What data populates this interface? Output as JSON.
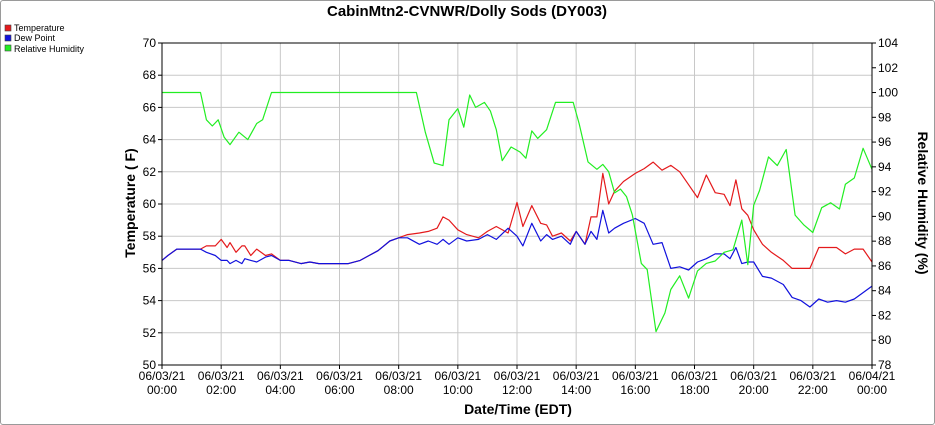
{
  "chart_data": {
    "type": "line",
    "title": "CabinMtn2-CVNWR/Dolly Sods (DY003)",
    "xlabel": "Date/Time (EDT)",
    "ylabel": "Temperature ( F)",
    "y2label": "Relative Humidity (%)",
    "xlim": [
      0,
      24
    ],
    "ylim": [
      50,
      70
    ],
    "y2lim": [
      78,
      104
    ],
    "grid": true,
    "legend_position": "top-left",
    "x_ticks": [
      0,
      2,
      4,
      6,
      8,
      10,
      12,
      14,
      16,
      18,
      20,
      22,
      24
    ],
    "x_tick_labels": [
      [
        "06/03/21",
        "00:00"
      ],
      [
        "06/03/21",
        "02:00"
      ],
      [
        "06/03/21",
        "04:00"
      ],
      [
        "06/03/21",
        "06:00"
      ],
      [
        "06/03/21",
        "08:00"
      ],
      [
        "06/03/21",
        "10:00"
      ],
      [
        "06/03/21",
        "12:00"
      ],
      [
        "06/03/21",
        "14:00"
      ],
      [
        "06/03/21",
        "16:00"
      ],
      [
        "06/03/21",
        "18:00"
      ],
      [
        "06/03/21",
        "20:00"
      ],
      [
        "06/03/21",
        "22:00"
      ],
      [
        "06/04/21",
        "00:00"
      ]
    ],
    "y_ticks": [
      50,
      52,
      54,
      56,
      58,
      60,
      62,
      64,
      66,
      68,
      70
    ],
    "y2_ticks": [
      78,
      80,
      82,
      84,
      86,
      88,
      90,
      92,
      94,
      96,
      98,
      100,
      102,
      104
    ],
    "series": [
      {
        "name": "Temperature",
        "color": "#e41a1c",
        "axis": "left",
        "x": [
          0,
          0.2,
          0.5,
          0.7,
          1,
          1.3,
          1.5,
          1.8,
          2,
          2.2,
          2.3,
          2.5,
          2.7,
          2.8,
          3,
          3.2,
          3.5,
          3.7,
          4,
          4.3,
          4.7,
          5,
          5.3,
          5.7,
          6,
          6.3,
          6.7,
          7,
          7.3,
          7.7,
          8,
          8.3,
          8.7,
          9,
          9.3,
          9.5,
          9.7,
          10,
          10.3,
          10.7,
          11,
          11.3,
          11.7,
          12,
          12.2,
          12.5,
          12.8,
          13,
          13.2,
          13.5,
          13.8,
          14,
          14.3,
          14.5,
          14.7,
          14.9,
          15.1,
          15.3,
          15.6,
          16,
          16.3,
          16.6,
          16.9,
          17.2,
          17.5,
          17.8,
          18.1,
          18.4,
          18.7,
          19,
          19.2,
          19.4,
          19.6,
          19.8,
          20,
          20.3,
          20.6,
          21,
          21.3,
          21.6,
          21.9,
          22.2,
          22.5,
          22.8,
          23.1,
          23.4,
          23.7,
          24
        ],
        "values": [
          56.5,
          56.8,
          57.2,
          57.2,
          57.2,
          57.2,
          57.4,
          57.4,
          57.8,
          57.3,
          57.6,
          57,
          57.4,
          57.4,
          56.8,
          57.2,
          56.8,
          56.9,
          56.5,
          56.5,
          56.3,
          56.4,
          56.3,
          56.3,
          56.3,
          56.3,
          56.5,
          56.8,
          57.1,
          57.7,
          57.9,
          58.1,
          58.2,
          58.3,
          58.5,
          59.2,
          59,
          58.4,
          58.1,
          57.9,
          58.3,
          58.6,
          58.2,
          60.1,
          58.6,
          59.9,
          58.8,
          58.7,
          58,
          58.2,
          57.7,
          58.3,
          57.5,
          59.2,
          59.2,
          61.9,
          60,
          60.8,
          61.4,
          61.9,
          62.2,
          62.6,
          62.1,
          62.4,
          62,
          61.2,
          60.4,
          61.8,
          60.7,
          60.6,
          59.9,
          61.5,
          59.7,
          59.3,
          58.4,
          57.5,
          57,
          56.5,
          56,
          56,
          56,
          57.3,
          57.3,
          57.3,
          56.9,
          57.2,
          57.2,
          56.4
        ]
      },
      {
        "name": "Dew Point",
        "color": "#1111dd",
        "axis": "left",
        "x": [
          0,
          0.2,
          0.5,
          0.7,
          1,
          1.3,
          1.5,
          1.8,
          2,
          2.2,
          2.3,
          2.5,
          2.7,
          2.8,
          3,
          3.2,
          3.5,
          3.7,
          4,
          4.3,
          4.7,
          5,
          5.3,
          5.7,
          6,
          6.3,
          6.7,
          7,
          7.3,
          7.7,
          8,
          8.3,
          8.7,
          9,
          9.3,
          9.5,
          9.7,
          10,
          10.3,
          10.7,
          11,
          11.3,
          11.7,
          12,
          12.2,
          12.5,
          12.8,
          13,
          13.2,
          13.5,
          13.8,
          14,
          14.3,
          14.5,
          14.7,
          14.9,
          15.1,
          15.3,
          15.6,
          16,
          16.3,
          16.6,
          16.9,
          17.2,
          17.5,
          17.8,
          18.1,
          18.4,
          18.7,
          19,
          19.2,
          19.4,
          19.6,
          19.8,
          20,
          20.3,
          20.6,
          21,
          21.3,
          21.6,
          21.9,
          22.2,
          22.5,
          22.8,
          23.1,
          23.4,
          23.7,
          24
        ],
        "values": [
          56.5,
          56.8,
          57.2,
          57.2,
          57.2,
          57.2,
          57,
          56.8,
          56.5,
          56.5,
          56.3,
          56.5,
          56.3,
          56.6,
          56.5,
          56.4,
          56.7,
          56.8,
          56.5,
          56.5,
          56.3,
          56.4,
          56.3,
          56.3,
          56.3,
          56.3,
          56.5,
          56.8,
          57.1,
          57.7,
          57.9,
          57.9,
          57.5,
          57.7,
          57.5,
          57.8,
          57.5,
          57.9,
          57.7,
          57.8,
          58.1,
          57.8,
          58.5,
          58,
          57.4,
          58.8,
          57.7,
          58.1,
          57.8,
          58,
          57.5,
          58.3,
          57.5,
          58.3,
          57.8,
          59.6,
          58.2,
          58.5,
          58.8,
          59.1,
          58.8,
          57.5,
          57.6,
          56,
          56.1,
          55.9,
          56.4,
          56.6,
          56.9,
          56.9,
          56.6,
          57.3,
          56.3,
          56.4,
          56.4,
          55.5,
          55.4,
          55,
          54.2,
          54,
          53.6,
          54.1,
          53.9,
          54,
          53.9,
          54.1,
          54.5,
          54.9
        ]
      },
      {
        "name": "Relative Humidity",
        "color": "#22ee22",
        "axis": "right",
        "x": [
          0,
          0.3,
          0.6,
          1,
          1.3,
          1.5,
          1.7,
          1.9,
          2.1,
          2.3,
          2.6,
          2.9,
          3.2,
          3.4,
          3.7,
          4,
          4.5,
          5,
          6,
          7,
          8,
          8.3,
          8.6,
          8.9,
          9.2,
          9.5,
          9.7,
          10,
          10.2,
          10.4,
          10.6,
          10.9,
          11.1,
          11.3,
          11.5,
          11.8,
          12.1,
          12.3,
          12.5,
          12.7,
          13,
          13.3,
          13.6,
          13.9,
          14.1,
          14.4,
          14.7,
          14.9,
          15.1,
          15.3,
          15.5,
          15.7,
          15.9,
          16.2,
          16.4,
          16.7,
          17,
          17.2,
          17.5,
          17.8,
          18.1,
          18.4,
          18.7,
          19,
          19.3,
          19.6,
          19.8,
          20,
          20.2,
          20.5,
          20.8,
          21.1,
          21.4,
          21.7,
          22,
          22.3,
          22.6,
          22.9,
          23.1,
          23.4,
          23.7,
          24
        ],
        "values": [
          100,
          100,
          100,
          100,
          100,
          97.8,
          97.3,
          97.8,
          96.4,
          95.8,
          96.8,
          96.2,
          97.5,
          97.8,
          100,
          100,
          100,
          100,
          100,
          100,
          100,
          100,
          100,
          96.8,
          94.3,
          94.1,
          97.8,
          98.7,
          97.2,
          99.8,
          98.8,
          99.2,
          98.5,
          97,
          94.5,
          95.6,
          95.2,
          94.7,
          96.9,
          96.3,
          97,
          99.2,
          99.2,
          99.2,
          97.5,
          94.4,
          93.8,
          94.2,
          93.6,
          91.9,
          92.2,
          91.6,
          90.1,
          86.2,
          85.7,
          80.7,
          82.2,
          84.1,
          85.2,
          83.4,
          85.6,
          86.2,
          86.4,
          87.1,
          87.3,
          89.7,
          86.1,
          90.9,
          92.1,
          94.8,
          94.1,
          95.4,
          90.1,
          89.3,
          88.7,
          90.7,
          91.1,
          90.6,
          92.6,
          93.1,
          95.5,
          93.8
        ]
      }
    ]
  }
}
